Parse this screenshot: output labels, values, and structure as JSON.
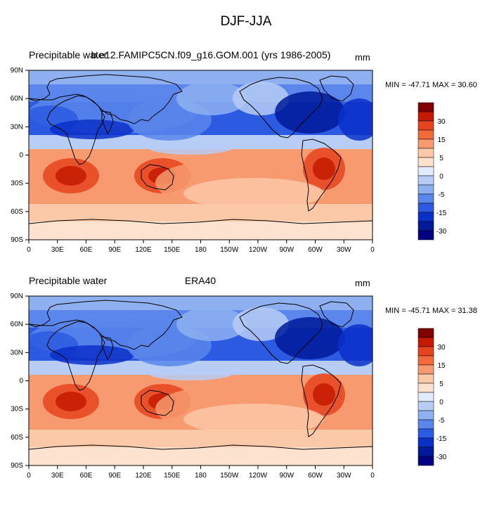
{
  "figure_title": "DJF-JJA",
  "colorbar": {
    "labels": [
      "30",
      "15",
      "5",
      "0",
      "-5",
      "-15",
      "-30"
    ],
    "colors": [
      "#800000",
      "#c41a00",
      "#e6441f",
      "#f26b3a",
      "#f79a6f",
      "#fbc8a8",
      "#fde3cf",
      "#e0ecfb",
      "#b7cdf6",
      "#8eb0f0",
      "#5b86eb",
      "#2c5ae0",
      "#0a30c8",
      "#001a9a",
      "#000080"
    ]
  },
  "axes": {
    "lon_labels": [
      "0",
      "30E",
      "60E",
      "90E",
      "120E",
      "150E",
      "180",
      "150W",
      "120W",
      "90W",
      "60W",
      "30W",
      "0"
    ],
    "lat_labels": [
      "90N",
      "60N",
      "30N",
      "0",
      "30S",
      "60S",
      "90S"
    ]
  },
  "panels": [
    {
      "left_title": "Precipitable water",
      "center_title": "b.e12.FAMIPC5CN.f09_g16.GOM.001 (yrs 1986-2005)",
      "units": "mm",
      "minmax": "MIN = -47.71 MAX =  30.60",
      "min": -47.71,
      "max": 30.6
    },
    {
      "left_title": "Precipitable water",
      "center_title": "ERA40",
      "units": "mm",
      "minmax": "MIN = -45.71 MAX =  31.38",
      "min": -45.71,
      "max": 31.38
    }
  ]
}
